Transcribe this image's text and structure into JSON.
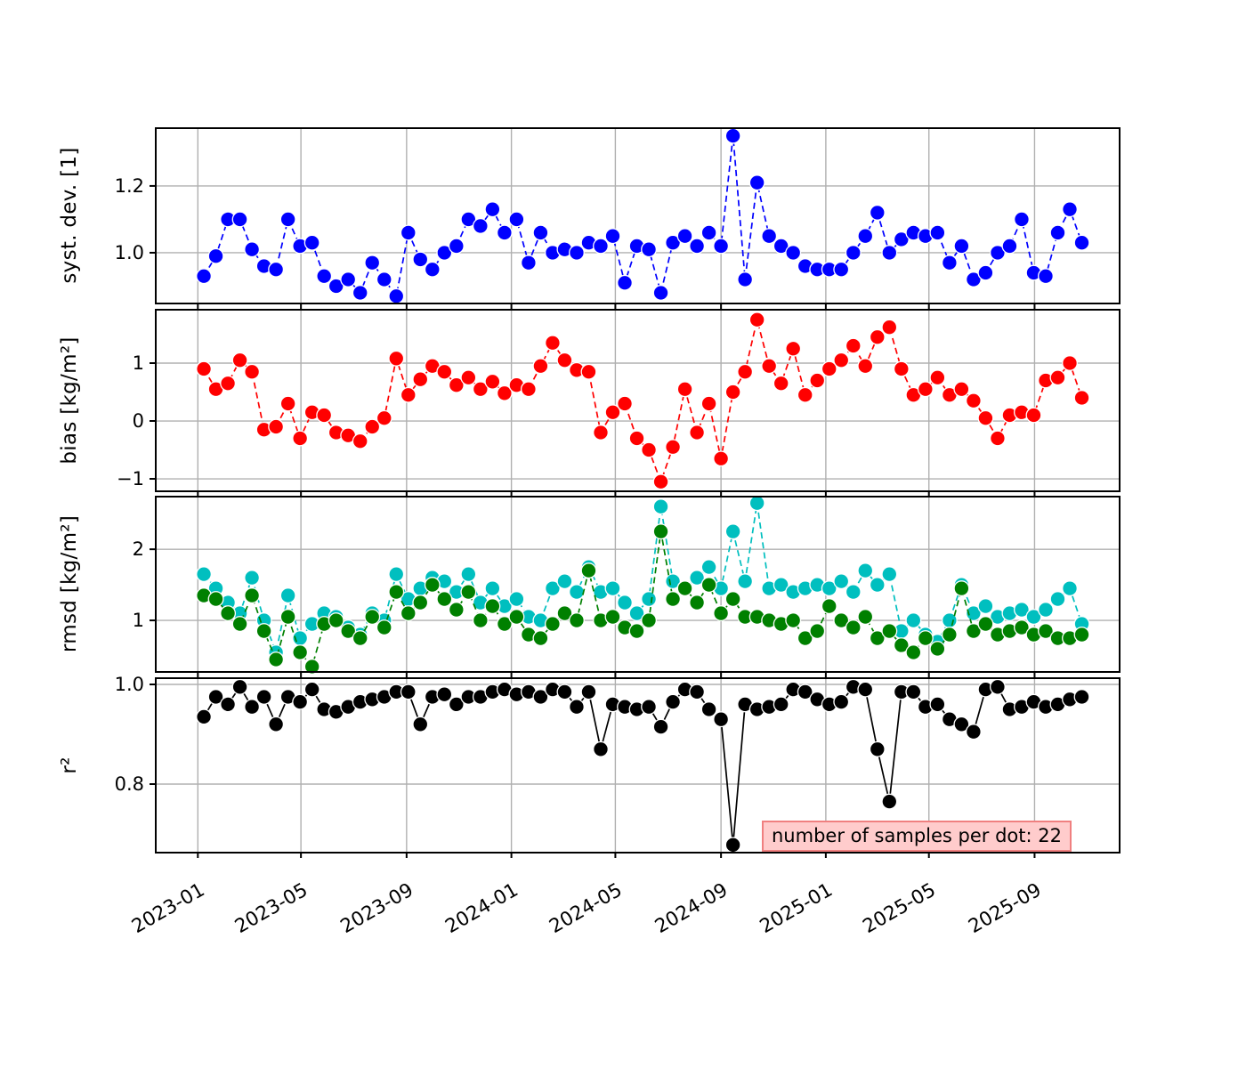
{
  "figure": {
    "background": "#ffffff"
  },
  "annotation": {
    "text": "number of samples per dot: 22",
    "bg_color": "#ffcccc",
    "border_color": "#f08080"
  },
  "axes": {
    "grid_color": "#b0b0b0",
    "spine_color": "#000000",
    "x_tick_labels": [
      "2023-01",
      "2023-05",
      "2023-09",
      "2024-01",
      "2024-05",
      "2024-09",
      "2025-01",
      "2025-05",
      "2025-09"
    ],
    "x_tick_days_since_2023_01_01": [
      0,
      120,
      243,
      365,
      486,
      609,
      731,
      851,
      974
    ],
    "x_domain_days": [
      -49,
      1073
    ]
  },
  "subplots": [
    {
      "ylabel": "syst. dev. [1]",
      "ylim": [
        0.848,
        1.373
      ],
      "ytick_values": [
        1.0,
        1.2
      ],
      "ytick_labels": [
        "1.0",
        "1.2"
      ]
    },
    {
      "ylabel": "bias [kg/m²]",
      "ylim": [
        -1.215,
        1.923
      ],
      "ytick_values": [
        -1,
        0,
        1
      ],
      "ytick_labels": [
        "−1",
        "0",
        "1"
      ]
    },
    {
      "ylabel": "rmsd [kg/m²]",
      "ylim": [
        0.275,
        2.74
      ],
      "ytick_values": [
        1,
        2
      ],
      "ytick_labels": [
        "1",
        "2"
      ]
    },
    {
      "ylabel": "r²",
      "ylim": [
        0.6625,
        1.0125
      ],
      "ytick_values": [
        0.8,
        1.0
      ],
      "ytick_labels": [
        "0.8",
        "1.0"
      ]
    }
  ],
  "chart_data": {
    "type": "scatter",
    "title": "",
    "xlabel": "",
    "x_units": "days since 2023-01-01",
    "x": [
      7,
      21,
      35,
      49,
      63,
      77,
      91,
      105,
      119,
      133,
      147,
      161,
      175,
      189,
      203,
      217,
      231,
      245,
      259,
      273,
      287,
      301,
      315,
      329,
      343,
      357,
      371,
      385,
      399,
      413,
      427,
      441,
      455,
      469,
      483,
      497,
      511,
      525,
      539,
      553,
      567,
      581,
      595,
      609,
      623,
      637,
      651,
      665,
      679,
      693,
      707,
      721,
      735,
      749,
      763,
      777,
      791,
      805,
      819,
      833,
      847,
      861,
      875,
      889,
      903,
      917,
      931,
      945,
      959,
      973,
      987,
      1001,
      1015,
      1029
    ],
    "series": [
      {
        "name": "syst. dev. [1]",
        "subplot": 0,
        "color": "#0000ff",
        "line": "dashed",
        "values": [
          0.93,
          0.99,
          1.1,
          1.1,
          1.01,
          0.96,
          0.95,
          1.1,
          1.02,
          1.03,
          0.93,
          0.9,
          0.92,
          0.88,
          0.97,
          0.92,
          0.87,
          1.06,
          0.98,
          0.95,
          1.0,
          1.02,
          1.1,
          1.08,
          1.13,
          1.06,
          1.1,
          0.97,
          1.06,
          1.0,
          1.01,
          1.0,
          1.03,
          1.02,
          1.05,
          0.91,
          1.02,
          1.01,
          0.88,
          1.03,
          1.05,
          1.02,
          1.06,
          1.02,
          1.35,
          0.92,
          1.21,
          1.05,
          1.02,
          1.0,
          0.96,
          0.95,
          0.95,
          0.95,
          1.0,
          1.05,
          1.12,
          1.0,
          1.04,
          1.06,
          1.05,
          1.06,
          0.97,
          1.02,
          0.92,
          0.94,
          1.0,
          1.02,
          1.1,
          0.94,
          0.93,
          1.06,
          1.13,
          1.03
        ]
      },
      {
        "name": "bias [kg/m²]",
        "subplot": 1,
        "color": "#ff0000",
        "line": "dashed",
        "values": [
          0.9,
          0.55,
          0.65,
          1.05,
          0.85,
          -0.15,
          -0.1,
          0.3,
          -0.3,
          0.15,
          0.1,
          -0.2,
          -0.25,
          -0.35,
          -0.1,
          0.05,
          1.08,
          0.45,
          0.72,
          0.95,
          0.85,
          0.62,
          0.75,
          0.55,
          0.68,
          0.48,
          0.62,
          0.55,
          0.95,
          1.35,
          1.05,
          0.88,
          0.85,
          -0.2,
          0.15,
          0.3,
          -0.3,
          -0.5,
          -1.05,
          -0.45,
          0.55,
          -0.2,
          0.3,
          -0.65,
          0.5,
          0.85,
          1.75,
          0.95,
          0.65,
          1.25,
          0.45,
          0.7,
          0.9,
          1.05,
          1.3,
          0.95,
          1.45,
          1.62,
          0.9,
          0.45,
          0.55,
          0.75,
          0.45,
          0.55,
          0.35,
          0.05,
          -0.3,
          0.1,
          0.15,
          0.1,
          0.7,
          0.75,
          1.0,
          0.4
        ]
      },
      {
        "name": "rmsd [kg/m²] (cyan series)",
        "subplot": 2,
        "color": "#00bfbf",
        "line": "dashed",
        "values": [
          1.65,
          1.45,
          1.25,
          1.1,
          1.6,
          1.0,
          0.55,
          1.35,
          0.75,
          0.95,
          1.1,
          1.05,
          0.9,
          0.8,
          1.1,
          1.0,
          1.65,
          1.3,
          1.45,
          1.6,
          1.55,
          1.4,
          1.65,
          1.25,
          1.45,
          1.2,
          1.3,
          1.05,
          1.0,
          1.45,
          1.55,
          1.4,
          1.75,
          1.4,
          1.45,
          1.25,
          1.1,
          1.3,
          2.6,
          1.55,
          1.45,
          1.6,
          1.75,
          1.45,
          2.25,
          1.55,
          2.65,
          1.45,
          1.5,
          1.4,
          1.45,
          1.5,
          1.45,
          1.55,
          1.4,
          1.7,
          1.5,
          1.65,
          0.85,
          1.0,
          0.8,
          0.7,
          1.0,
          1.5,
          1.1,
          1.2,
          1.05,
          1.1,
          1.15,
          1.05,
          1.15,
          1.3,
          1.45,
          0.95
        ]
      },
      {
        "name": "rmsd [kg/m²] (green series)",
        "subplot": 2,
        "color": "#008000",
        "line": "dashed",
        "values": [
          1.35,
          1.3,
          1.1,
          0.95,
          1.35,
          0.85,
          0.45,
          1.05,
          0.55,
          0.35,
          0.95,
          1.0,
          0.85,
          0.75,
          1.05,
          0.9,
          1.4,
          1.1,
          1.25,
          1.5,
          1.3,
          1.15,
          1.4,
          1.0,
          1.2,
          0.95,
          1.05,
          0.8,
          0.75,
          0.95,
          1.1,
          1.0,
          1.7,
          1.0,
          1.05,
          0.9,
          0.85,
          1.0,
          2.25,
          1.3,
          1.45,
          1.25,
          1.5,
          1.1,
          1.3,
          1.05,
          1.05,
          1.0,
          0.95,
          1.0,
          0.75,
          0.85,
          1.2,
          1.0,
          0.9,
          1.05,
          0.75,
          0.85,
          0.65,
          0.55,
          0.75,
          0.6,
          0.8,
          1.45,
          0.85,
          0.95,
          0.8,
          0.85,
          0.9,
          0.8,
          0.85,
          0.75,
          0.75,
          0.8
        ]
      },
      {
        "name": "r²",
        "subplot": 3,
        "color": "#000000",
        "line": "solid",
        "values": [
          0.935,
          0.975,
          0.96,
          0.995,
          0.955,
          0.975,
          0.92,
          0.975,
          0.965,
          0.99,
          0.95,
          0.945,
          0.955,
          0.965,
          0.97,
          0.975,
          0.985,
          0.985,
          0.92,
          0.975,
          0.98,
          0.96,
          0.975,
          0.975,
          0.985,
          0.99,
          0.98,
          0.985,
          0.975,
          0.99,
          0.985,
          0.955,
          0.985,
          0.87,
          0.96,
          0.955,
          0.95,
          0.955,
          0.915,
          0.965,
          0.99,
          0.985,
          0.95,
          0.93,
          0.678,
          0.96,
          0.95,
          0.955,
          0.96,
          0.99,
          0.985,
          0.97,
          0.96,
          0.965,
          0.995,
          0.99,
          0.87,
          0.765,
          0.985,
          0.985,
          0.955,
          0.96,
          0.93,
          0.92,
          0.905,
          0.99,
          0.995,
          0.95,
          0.955,
          0.965,
          0.955,
          0.96,
          0.97,
          0.975
        ]
      }
    ]
  }
}
